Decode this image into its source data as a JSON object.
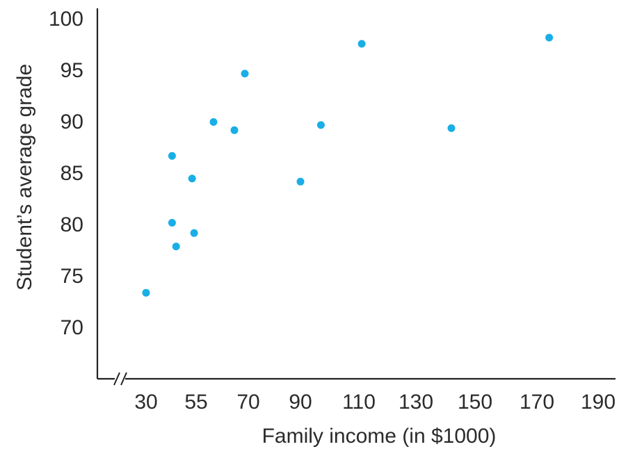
{
  "chart_data": {
    "type": "scatter",
    "title": "",
    "xlabel": "Family income (in $1000)",
    "ylabel": "Student’s average grade",
    "x_ticks": [
      "30",
      "55",
      "70",
      "90",
      "110",
      "130",
      "150",
      "170",
      "190"
    ],
    "y_ticks": [
      "100",
      "95",
      "90",
      "85",
      "80",
      "75",
      "70"
    ],
    "y_range": [
      66.5,
      100.5
    ],
    "x_axis_break": true,
    "grid": false,
    "legend": "none",
    "point_color": "#19aee6",
    "points": [
      {
        "x": 30,
        "y": 73.3
      },
      {
        "x": 43,
        "y": 86.6
      },
      {
        "x": 43,
        "y": 80.1
      },
      {
        "x": 45,
        "y": 77.8
      },
      {
        "x": 53,
        "y": 84.4
      },
      {
        "x": 54,
        "y": 79.1
      },
      {
        "x": 60,
        "y": 89.9
      },
      {
        "x": 66,
        "y": 89.1
      },
      {
        "x": 69,
        "y": 94.6
      },
      {
        "x": 90,
        "y": 84.1
      },
      {
        "x": 97,
        "y": 89.6
      },
      {
        "x": 111,
        "y": 97.5
      },
      {
        "x": 142,
        "y": 89.3
      },
      {
        "x": 174,
        "y": 98.1
      }
    ]
  }
}
